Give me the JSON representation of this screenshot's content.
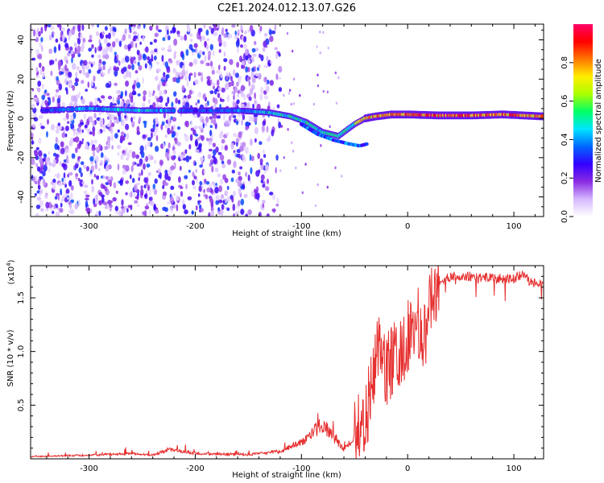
{
  "title": "C2E1.2024.012.13.07.G26",
  "chart_data": [
    {
      "type": "heatmap",
      "xlabel": "Height of straight line (km)",
      "ylabel": "Frequency (Hz)",
      "xlim": [
        -355,
        128
      ],
      "ylim": [
        -50,
        48
      ],
      "x_ticks": [
        -300,
        -200,
        -100,
        0,
        100
      ],
      "x_tick_labels": [
        "-300",
        "-200",
        "-100",
        "0",
        "100"
      ],
      "y_ticks": [
        -40,
        -20,
        0,
        20,
        40
      ],
      "y_tick_labels": [
        "-40",
        "-20",
        "0",
        "20",
        "40"
      ],
      "grid": false,
      "colorbar": {
        "label": "Normalized spectral amplitude",
        "range": [
          0,
          1
        ],
        "ticks": [
          0.0,
          0.2,
          0.4,
          0.6,
          0.8
        ],
        "tick_labels": [
          "0.0",
          "0.2",
          "0.4",
          "0.6",
          "0.8"
        ],
        "colors": [
          "#ffffff",
          "#d6b8ff",
          "#8a2be2",
          "#3300ff",
          "#0066ff",
          "#00e5ff",
          "#00ff66",
          "#aaff00",
          "#ffee00",
          "#ff7700",
          "#ff0000",
          "#ff0066"
        ]
      },
      "ridge": {
        "x": [
          -345,
          -300,
          -250,
          -200,
          -160,
          -130,
          -110,
          -95,
          -80,
          -65,
          -50,
          -40,
          -30,
          -15,
          0,
          30,
          60,
          90,
          128
        ],
        "y": [
          4,
          5,
          4,
          4,
          4,
          3,
          1,
          -2,
          -7,
          -9,
          -3,
          0,
          1,
          2,
          2,
          1.5,
          1.5,
          2,
          1
        ],
        "amplitude": [
          0.35,
          0.45,
          0.5,
          0.35,
          0.4,
          0.5,
          0.55,
          0.55,
          0.5,
          0.55,
          0.6,
          0.8,
          0.85,
          0.85,
          0.95,
          0.95,
          0.95,
          0.9,
          0.85
        ]
      },
      "lower_branch": {
        "x": [
          -100,
          -85,
          -70,
          -55,
          -45,
          -38
        ],
        "y": [
          -3,
          -8,
          -11,
          -13,
          -14,
          -13
        ]
      },
      "noise_region_x": [
        -355,
        -120
      ]
    },
    {
      "type": "line",
      "xlabel": "Height of straight line (km)",
      "ylabel": "SNR (10 * v/v)",
      "y_scale_label": "(x10",
      "y_scale_exponent": "4",
      "y_scale_suffix": ")",
      "xlim": [
        -355,
        128
      ],
      "ylim": [
        0,
        18000
      ],
      "x_ticks": [
        -300,
        -200,
        -100,
        0,
        100
      ],
      "x_tick_labels": [
        "-300",
        "-200",
        "-100",
        "0",
        "100"
      ],
      "y_ticks": [
        5000,
        10000,
        15000
      ],
      "y_tick_labels": [
        "0.5",
        "1.0",
        "1.5"
      ],
      "grid": false,
      "color": "#e62e2e",
      "series": [
        {
          "x": [
            -355,
            -300,
            -260,
            -240,
            -225,
            -220,
            -200,
            -150,
            -120,
            -100,
            -90,
            -80,
            -70,
            -60,
            -50,
            -40,
            -35,
            -30,
            -25,
            -20,
            -15,
            -10,
            -5,
            0,
            5,
            10,
            15,
            20,
            25,
            30,
            40,
            60,
            80,
            100,
            110,
            115,
            128
          ],
          "y": [
            200,
            350,
            500,
            350,
            900,
            800,
            500,
            400,
            700,
            1500,
            2500,
            3200,
            2000,
            900,
            2000,
            4000,
            6000,
            9000,
            11000,
            8000,
            9000,
            10500,
            9500,
            11500,
            11500,
            12500,
            11000,
            13500,
            15500,
            16500,
            17000,
            17000,
            16800,
            16800,
            17200,
            16500,
            16200
          ]
        }
      ]
    }
  ]
}
